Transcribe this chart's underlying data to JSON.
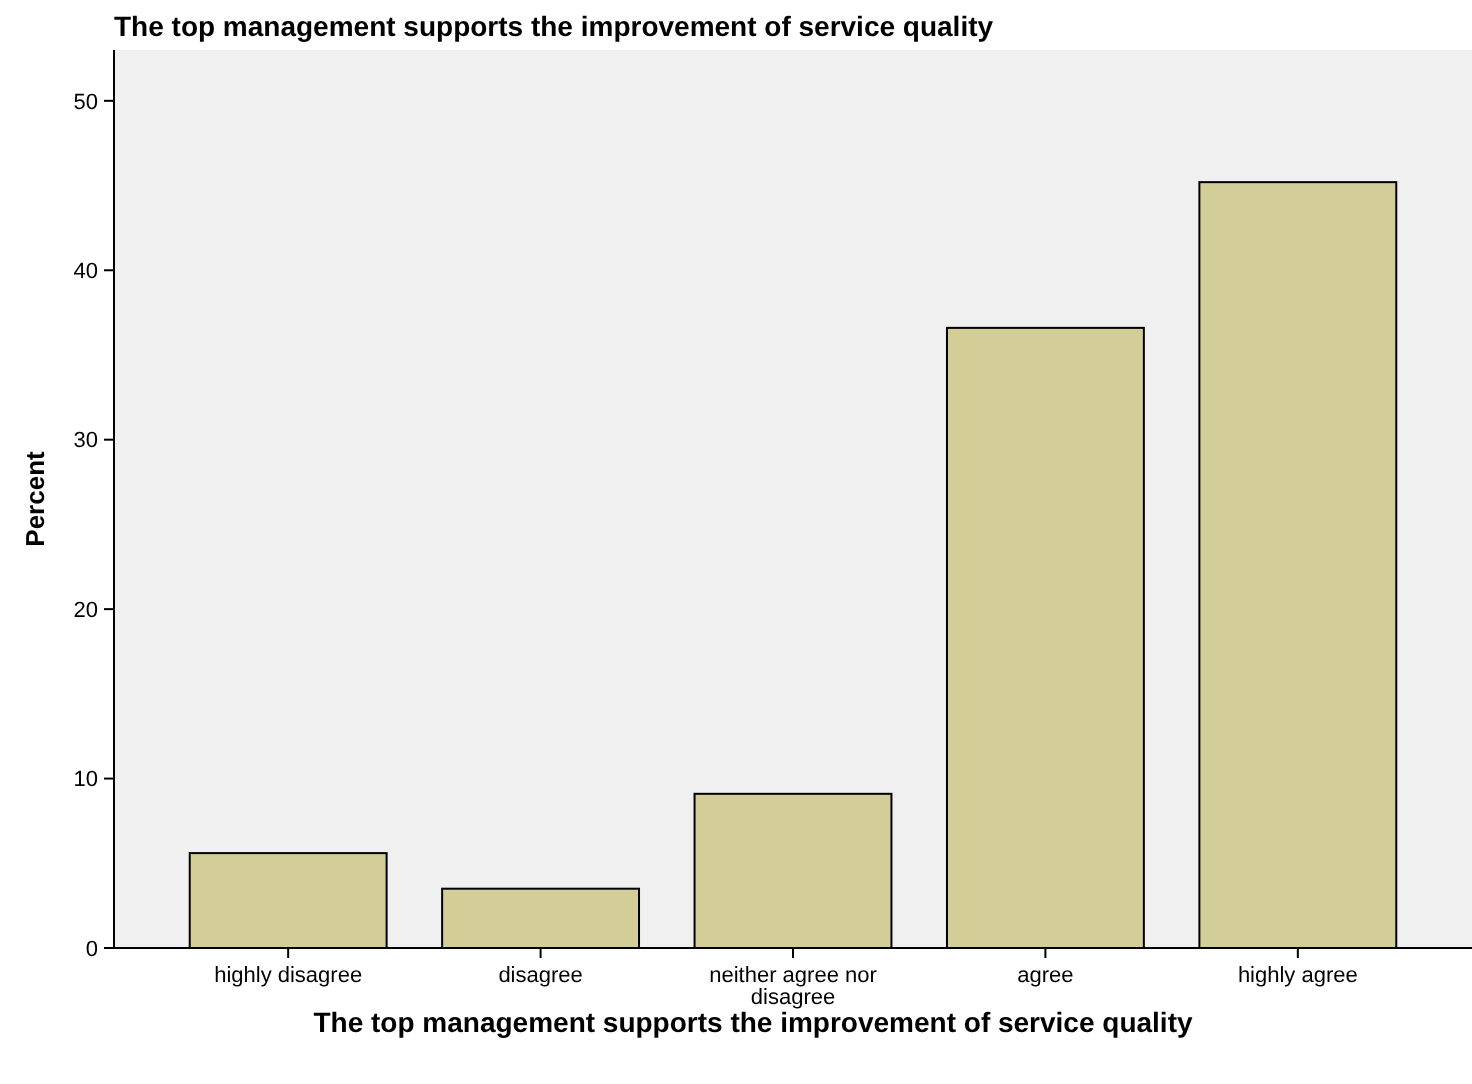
{
  "chart_data": {
    "type": "bar",
    "title": "The top management supports the improvement of service quality",
    "xlabel": "The top management supports the improvement of service quality",
    "ylabel": "Percent",
    "categories": [
      "highly disagree",
      "disagree",
      "neither agree nor disagree",
      "agree",
      "highly agree"
    ],
    "values": [
      5.6,
      3.5,
      9.1,
      36.6,
      45.2
    ],
    "color": "#d3ce97",
    "ylim": [
      0,
      53
    ],
    "yticks": [
      0,
      10,
      20,
      30,
      40,
      50
    ],
    "grid": false
  }
}
